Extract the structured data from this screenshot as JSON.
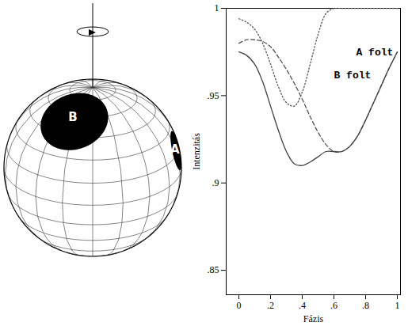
{
  "chart_data": {
    "type": "line",
    "x_label": "Fázis",
    "y_label": "Intenzitás",
    "x": [
      0,
      0.05,
      0.1,
      0.15,
      0.2,
      0.25,
      0.3,
      0.35,
      0.4,
      0.45,
      0.5,
      0.55,
      0.6,
      0.65,
      0.7,
      0.75,
      0.8,
      0.85,
      0.9,
      0.95,
      1
    ],
    "series": [
      {
        "values": [
          0.994,
          0.992,
          0.988,
          0.98,
          0.968,
          0.955,
          0.946,
          0.944,
          0.952,
          0.968,
          0.985,
          0.997,
          1,
          1,
          1,
          1,
          1,
          1,
          1,
          1,
          1
        ],
        "line_style": "dotted",
        "color": "#555555"
      },
      {
        "values": [
          0.98,
          0.982,
          0.982,
          0.981,
          0.978,
          0.972,
          0.965,
          0.957,
          0.948,
          0.938,
          0.929,
          0.922,
          0.918,
          0.918,
          0.921,
          0.927,
          0.936,
          0.946,
          0.956,
          0.966,
          0.975
        ],
        "line_style": "dashed",
        "color": "#555555"
      },
      {
        "values": [
          0.975,
          0.973,
          0.968,
          0.958,
          0.944,
          0.93,
          0.918,
          0.911,
          0.91,
          0.912,
          0.915,
          0.918,
          0.918,
          0.918,
          0.921,
          0.927,
          0.936,
          0.946,
          0.956,
          0.966,
          0.975
        ],
        "line_style": "solid",
        "color": "#444444"
      }
    ],
    "annotations": [
      {
        "text": "A folt",
        "x": 0.74,
        "y": 0.975
      },
      {
        "text": "B folt",
        "x": 0.6,
        "y": 0.962
      }
    ],
    "xlim": [
      -0.08,
      1.02
    ],
    "xticks": [
      0,
      {
        "value": 0.2,
        "label": ".2"
      },
      {
        "value": 0.4,
        "label": ".4"
      },
      {
        "value": 0.6,
        "label": ".6"
      },
      {
        "value": 0.8,
        "label": ".8"
      },
      1
    ],
    "ylim": [
      0.836,
      1
    ],
    "yticks": [
      {
        "value": 0.85,
        "label": ".85"
      },
      {
        "value": 0.9,
        "label": ".9"
      },
      {
        "value": 0.95,
        "label": ".95"
      },
      1
    ]
  },
  "diagram": {
    "spots": [
      {
        "label": "A"
      },
      {
        "label": "B"
      }
    ]
  }
}
